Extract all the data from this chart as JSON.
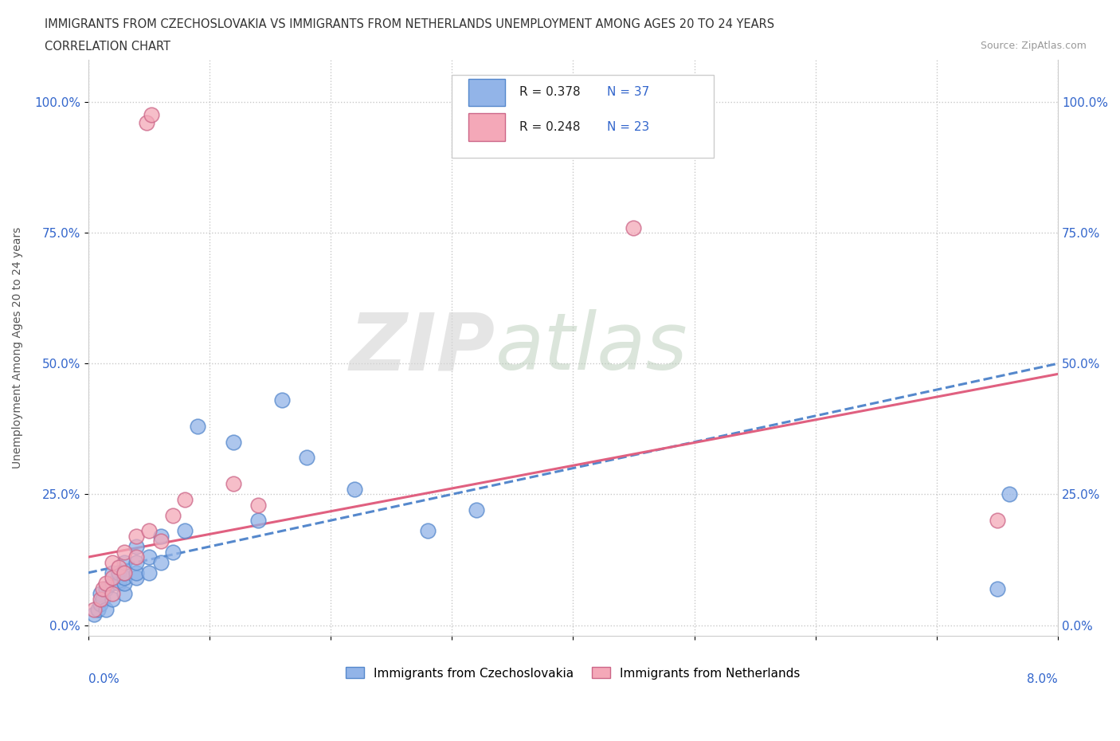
{
  "title_line1": "IMMIGRANTS FROM CZECHOSLOVAKIA VS IMMIGRANTS FROM NETHERLANDS UNEMPLOYMENT AMONG AGES 20 TO 24 YEARS",
  "title_line2": "CORRELATION CHART",
  "source": "Source: ZipAtlas.com",
  "ylabel": "Unemployment Among Ages 20 to 24 years",
  "yticks": [
    0.0,
    0.25,
    0.5,
    0.75,
    1.0
  ],
  "ytick_labels": [
    "0.0%",
    "25.0%",
    "50.0%",
    "75.0%",
    "100.0%"
  ],
  "xlim": [
    0.0,
    0.08
  ],
  "ylim": [
    -0.02,
    1.08
  ],
  "color_czech": "#92b4e8",
  "color_czech_edge": "#5588cc",
  "color_neth": "#f4a8b8",
  "color_neth_edge": "#cc6688",
  "color_trend_czech": "#5588cc",
  "color_trend_neth": "#e06080",
  "czech_x": [
    0.0005,
    0.0008,
    0.001,
    0.001,
    0.0012,
    0.0015,
    0.0015,
    0.002,
    0.002,
    0.002,
    0.0025,
    0.0025,
    0.003,
    0.003,
    0.003,
    0.003,
    0.003,
    0.004,
    0.004,
    0.004,
    0.004,
    0.005,
    0.005,
    0.006,
    0.006,
    0.007,
    0.008,
    0.009,
    0.012,
    0.014,
    0.016,
    0.018,
    0.022,
    0.028,
    0.032,
    0.075,
    0.076
  ],
  "czech_y": [
    0.02,
    0.03,
    0.04,
    0.06,
    0.05,
    0.03,
    0.07,
    0.05,
    0.08,
    0.1,
    0.08,
    0.1,
    0.06,
    0.08,
    0.09,
    0.1,
    0.12,
    0.09,
    0.1,
    0.12,
    0.15,
    0.1,
    0.13,
    0.12,
    0.17,
    0.14,
    0.18,
    0.38,
    0.35,
    0.2,
    0.43,
    0.32,
    0.26,
    0.18,
    0.22,
    0.07,
    0.25
  ],
  "neth_x": [
    0.0005,
    0.001,
    0.0012,
    0.0015,
    0.002,
    0.002,
    0.002,
    0.0025,
    0.003,
    0.003,
    0.004,
    0.004,
    0.005,
    0.0048,
    0.0052,
    0.006,
    0.007,
    0.008,
    0.012,
    0.014,
    0.045,
    0.075
  ],
  "neth_y": [
    0.03,
    0.05,
    0.07,
    0.08,
    0.06,
    0.09,
    0.12,
    0.11,
    0.1,
    0.14,
    0.13,
    0.17,
    0.18,
    0.96,
    0.975,
    0.16,
    0.21,
    0.24,
    0.27,
    0.23,
    0.76,
    0.2
  ],
  "watermark_zip_color": "#d8d8d8",
  "watermark_atlas_color": "#b8ccb8"
}
